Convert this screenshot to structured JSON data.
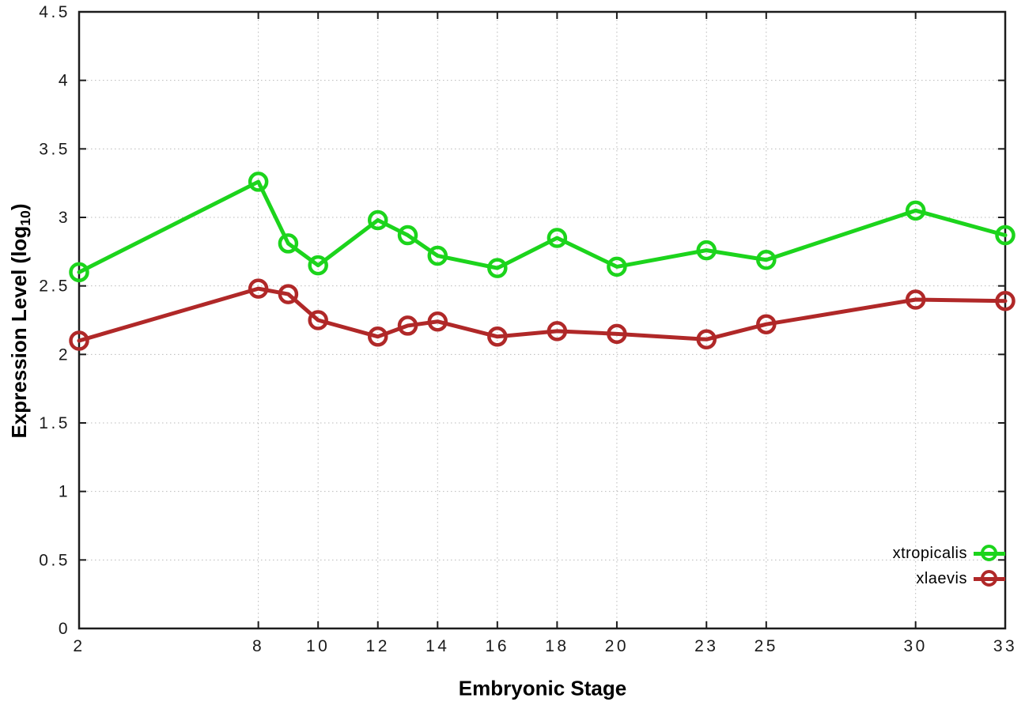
{
  "figure": {
    "background": "#ffffff",
    "border_color": "#1c1c1c",
    "grid_color": "#b9b9b9",
    "tick_label_color": "#1a1a1a"
  },
  "chart_data": {
    "type": "line",
    "title": "",
    "xlabel": "Embryonic Stage",
    "ylabel_prefix": "Expression Level (log",
    "ylabel_sub": "10",
    "ylabel_suffix": ")",
    "x": [
      2,
      8,
      9,
      10,
      12,
      13,
      14,
      16,
      18,
      20,
      23,
      25,
      30,
      33
    ],
    "series": [
      {
        "name": "xtropicalis",
        "color": "#1cd41c",
        "marker": "open-circle",
        "values": [
          2.6,
          3.26,
          2.81,
          2.65,
          2.98,
          2.87,
          2.72,
          2.63,
          2.85,
          2.64,
          2.76,
          2.69,
          3.05,
          2.87
        ]
      },
      {
        "name": "xlaevis",
        "color": "#b02828",
        "marker": "open-circle",
        "values": [
          2.1,
          2.48,
          2.44,
          2.25,
          2.13,
          2.21,
          2.24,
          2.13,
          2.17,
          2.15,
          2.11,
          2.22,
          2.4,
          2.39
        ]
      }
    ],
    "xlim": [
      2,
      33
    ],
    "ylim": [
      0,
      4.5
    ],
    "xticks": {
      "values": [
        2,
        8,
        10,
        12,
        14,
        16,
        18,
        20,
        23,
        25,
        30,
        33
      ],
      "labels": [
        "2",
        "8",
        "10",
        "12",
        "14",
        "16",
        "18",
        "20",
        "23",
        "25",
        "30",
        "33"
      ]
    },
    "yticks": {
      "values": [
        0,
        0.5,
        1,
        1.5,
        2,
        2.5,
        3,
        3.5,
        4,
        4.5
      ],
      "labels": [
        "0",
        "0.5",
        "1",
        "1.5",
        "2",
        "2.5",
        "3",
        "3.5",
        "4",
        "4.5"
      ]
    },
    "grid": true,
    "legend_position": "inside-bottom-right"
  }
}
